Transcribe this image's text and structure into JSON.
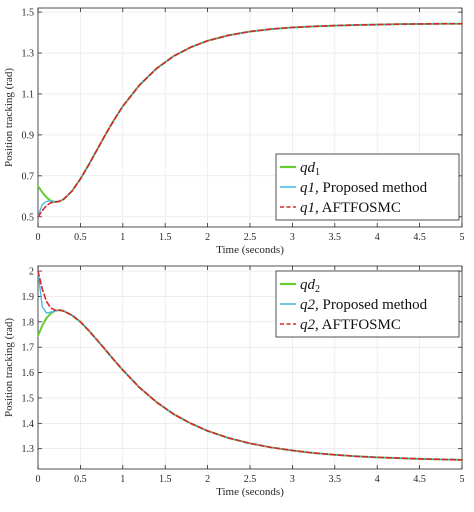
{
  "colors": {
    "reference": "#66cc33",
    "proposed": "#4db8e6",
    "aftfosmc": "#d62728"
  },
  "chart_data": [
    {
      "type": "line",
      "xlabel": "Time (seconds)",
      "ylabel": "Position tracking (rad)",
      "xlim": [
        0,
        5
      ],
      "ylim": [
        0.45,
        1.52
      ],
      "xticks": [
        "0",
        "0.5",
        "1",
        "1.5",
        "2",
        "2.5",
        "3",
        "3.5",
        "4",
        "4.5",
        "5"
      ],
      "yticks": [
        "0.5",
        "0.7",
        "0.9",
        "1.1",
        "1.3",
        "1.5"
      ],
      "grid": true,
      "legend_position": "bottom-right",
      "legend": [
        {
          "label_main": "qd",
          "label_sub": "1",
          "label_rest": "",
          "style": "solid",
          "color": "#66cc33"
        },
        {
          "label_main": "q1",
          "label_sub": "",
          "label_rest": ", Proposed method",
          "style": "solid",
          "color": "#4db8e6"
        },
        {
          "label_main": "q1",
          "label_sub": "",
          "label_rest": ", AFTFOSMC",
          "style": "dashed",
          "color": "#d62728"
        }
      ],
      "x": [
        0,
        0.05,
        0.1,
        0.15,
        0.2,
        0.25,
        0.3,
        0.4,
        0.5,
        0.6,
        0.7,
        0.8,
        0.9,
        1.0,
        1.2,
        1.4,
        1.6,
        1.8,
        2.0,
        2.25,
        2.5,
        2.75,
        3.0,
        3.25,
        3.5,
        3.75,
        4.0,
        4.25,
        4.5,
        4.75,
        5.0
      ],
      "series": [
        {
          "name": "qd1",
          "values": [
            0.65,
            0.62,
            0.595,
            0.578,
            0.572,
            0.575,
            0.585,
            0.625,
            0.685,
            0.755,
            0.83,
            0.905,
            0.975,
            1.04,
            1.145,
            1.225,
            1.285,
            1.328,
            1.36,
            1.387,
            1.405,
            1.417,
            1.425,
            1.43,
            1.434,
            1.437,
            1.439,
            1.441,
            1.442,
            1.443,
            1.443
          ]
        },
        {
          "name": "q1, Proposed method",
          "values": [
            0.5,
            0.56,
            0.575,
            0.578,
            0.574,
            0.576,
            0.585,
            0.625,
            0.685,
            0.755,
            0.83,
            0.905,
            0.975,
            1.04,
            1.145,
            1.225,
            1.285,
            1.328,
            1.36,
            1.387,
            1.405,
            1.417,
            1.425,
            1.43,
            1.434,
            1.437,
            1.439,
            1.441,
            1.442,
            1.443,
            1.443
          ]
        },
        {
          "name": "q1, AFTFOSMC",
          "values": [
            0.5,
            0.53,
            0.555,
            0.568,
            0.572,
            0.575,
            0.585,
            0.625,
            0.685,
            0.755,
            0.83,
            0.905,
            0.975,
            1.04,
            1.145,
            1.225,
            1.285,
            1.328,
            1.36,
            1.387,
            1.405,
            1.417,
            1.425,
            1.43,
            1.434,
            1.437,
            1.439,
            1.441,
            1.442,
            1.443,
            1.443
          ]
        }
      ]
    },
    {
      "type": "line",
      "xlabel": "Time (seconds)",
      "ylabel": "Position tracking (rad)",
      "xlim": [
        0,
        5
      ],
      "ylim": [
        1.22,
        2.02
      ],
      "xticks": [
        "0",
        "0.5",
        "1",
        "1.5",
        "2",
        "2.5",
        "3",
        "3.5",
        "4",
        "4.5",
        "5"
      ],
      "yticks": [
        "1.3",
        "1.4",
        "1.5",
        "1.6",
        "1.7",
        "1.8",
        "1.9",
        "2"
      ],
      "grid": true,
      "legend_position": "top-right",
      "legend": [
        {
          "label_main": "qd",
          "label_sub": "2",
          "label_rest": "",
          "style": "solid",
          "color": "#66cc33"
        },
        {
          "label_main": "q2",
          "label_sub": "",
          "label_rest": ", Proposed method",
          "style": "solid",
          "color": "#4db8e6"
        },
        {
          "label_main": "q2",
          "label_sub": "",
          "label_rest": ", AFTFOSMC",
          "style": "dashed",
          "color": "#d62728"
        }
      ],
      "x": [
        0,
        0.05,
        0.1,
        0.15,
        0.2,
        0.25,
        0.3,
        0.4,
        0.5,
        0.6,
        0.7,
        0.8,
        0.9,
        1.0,
        1.2,
        1.4,
        1.6,
        1.8,
        2.0,
        2.25,
        2.5,
        2.75,
        3.0,
        3.25,
        3.5,
        3.75,
        4.0,
        4.25,
        4.5,
        4.75,
        5.0
      ],
      "series": [
        {
          "name": "qd2",
          "values": [
            1.745,
            1.785,
            1.815,
            1.833,
            1.843,
            1.846,
            1.843,
            1.826,
            1.8,
            1.765,
            1.727,
            1.688,
            1.648,
            1.61,
            1.54,
            1.483,
            1.436,
            1.4,
            1.37,
            1.342,
            1.321,
            1.305,
            1.293,
            1.283,
            1.276,
            1.27,
            1.266,
            1.263,
            1.26,
            1.258,
            1.256
          ]
        },
        {
          "name": "q2, Proposed method",
          "values": [
            2.0,
            1.86,
            1.835,
            1.838,
            1.843,
            1.846,
            1.843,
            1.826,
            1.8,
            1.765,
            1.727,
            1.688,
            1.648,
            1.61,
            1.54,
            1.483,
            1.436,
            1.4,
            1.37,
            1.342,
            1.321,
            1.305,
            1.293,
            1.283,
            1.276,
            1.27,
            1.266,
            1.263,
            1.26,
            1.258,
            1.256
          ]
        },
        {
          "name": "q2, AFTFOSMC",
          "values": [
            2.0,
            1.93,
            1.88,
            1.855,
            1.846,
            1.846,
            1.843,
            1.826,
            1.8,
            1.765,
            1.727,
            1.688,
            1.648,
            1.61,
            1.54,
            1.483,
            1.436,
            1.4,
            1.37,
            1.342,
            1.321,
            1.305,
            1.293,
            1.283,
            1.276,
            1.27,
            1.266,
            1.263,
            1.26,
            1.258,
            1.256
          ]
        }
      ]
    }
  ]
}
